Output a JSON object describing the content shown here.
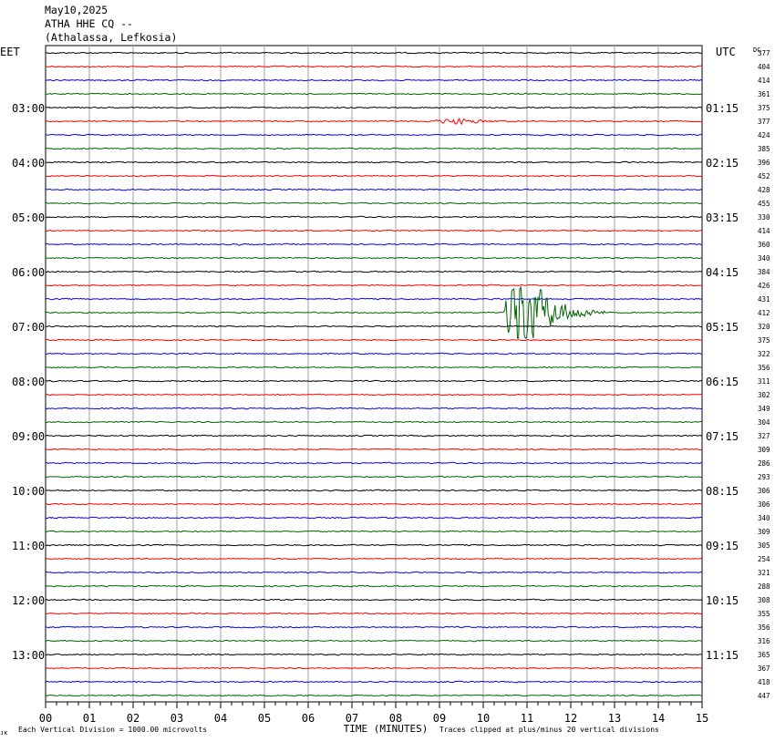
{
  "header": {
    "date": "May10,2025",
    "station": "ATHA HHE CQ --",
    "location": "(Athalassa, Lefkosia)"
  },
  "axes": {
    "left_zone": "EET",
    "right_zone": "UTC",
    "dc_label": "DC",
    "xlabel": "TIME (MINUTES)"
  },
  "footer": {
    "scale_note": "Each Vertical Division = 1000.00 microvolts",
    "clip_note": "Traces clipped at plus/minus 20 vertical divisions",
    "corner_mark": "ᴊᴋ"
  },
  "colors": {
    "trace_cycle": [
      "#000000",
      "#ff0000",
      "#0000ff",
      "#006400"
    ],
    "grid": "#a0a0a0"
  },
  "chart_data": {
    "type": "line",
    "title": "May10,2025 ATHA HHE CQ -- (Athalassa, Lefkosia)",
    "xlabel": "TIME (MINUTES)",
    "xlim": [
      0,
      15
    ],
    "x_ticks": [
      "00",
      "01",
      "02",
      "03",
      "04",
      "05",
      "06",
      "07",
      "08",
      "09",
      "10",
      "11",
      "12",
      "13",
      "14",
      "15"
    ],
    "grid": true,
    "traces_per_hour": 4,
    "minutes_per_trace": 15,
    "left_hour_labels": [
      {
        "trace": 4,
        "label": "03:00"
      },
      {
        "trace": 8,
        "label": "04:00"
      },
      {
        "trace": 12,
        "label": "05:00"
      },
      {
        "trace": 16,
        "label": "06:00"
      },
      {
        "trace": 20,
        "label": "07:00"
      },
      {
        "trace": 24,
        "label": "08:00"
      },
      {
        "trace": 28,
        "label": "09:00"
      },
      {
        "trace": 32,
        "label": "10:00"
      },
      {
        "trace": 36,
        "label": "11:00"
      },
      {
        "trace": 40,
        "label": "12:00"
      },
      {
        "trace": 44,
        "label": "13:00"
      }
    ],
    "right_hour_labels": [
      {
        "trace": 4,
        "label": "01:15"
      },
      {
        "trace": 8,
        "label": "02:15"
      },
      {
        "trace": 12,
        "label": "03:15"
      },
      {
        "trace": 16,
        "label": "04:15"
      },
      {
        "trace": 20,
        "label": "05:15"
      },
      {
        "trace": 24,
        "label": "06:15"
      },
      {
        "trace": 28,
        "label": "07:15"
      },
      {
        "trace": 32,
        "label": "08:15"
      },
      {
        "trace": 36,
        "label": "09:15"
      },
      {
        "trace": 40,
        "label": "10:15"
      },
      {
        "trace": 44,
        "label": "11:15"
      }
    ],
    "dc_offsets": [
      "377",
      "404",
      "414",
      "361",
      "375",
      "377",
      "424",
      "385",
      "396",
      "452",
      "428",
      "455",
      "330",
      "414",
      "360",
      "340",
      "384",
      "426",
      "431",
      "412",
      "320",
      "375",
      "322",
      "356",
      "311",
      "302",
      "349",
      "304",
      "327",
      "309",
      "286",
      "293",
      "306",
      "306",
      "340",
      "309",
      "305",
      "254",
      "321",
      "288",
      "308",
      "355",
      "356",
      "316",
      "365",
      "367",
      "418",
      "447"
    ],
    "events": [
      {
        "trace": 5,
        "start_min": 8.5,
        "peak_min": 9.4,
        "end_min": 12.0,
        "peak_amp_div": 1.2
      },
      {
        "trace": 14,
        "start_min": 4.0,
        "peak_min": 4.4,
        "end_min": 5.2,
        "peak_amp_div": 0.4
      },
      {
        "trace": 19,
        "start_min": 10.45,
        "peak_min": 10.75,
        "end_min": 12.8,
        "peak_amp_div": 20
      }
    ],
    "noise_amp_div": 0.22
  }
}
